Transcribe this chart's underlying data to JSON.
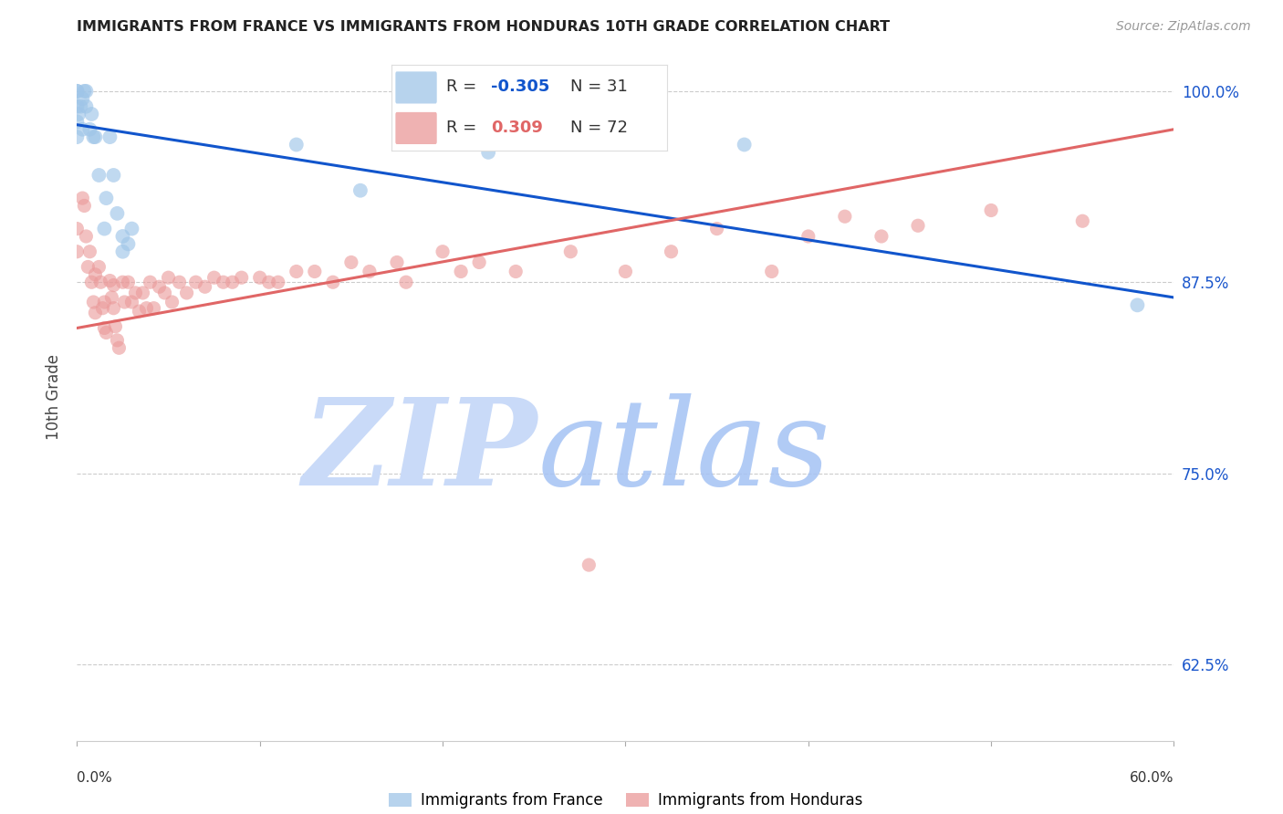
{
  "title": "IMMIGRANTS FROM FRANCE VS IMMIGRANTS FROM HONDURAS 10TH GRADE CORRELATION CHART",
  "source": "Source: ZipAtlas.com",
  "ylabel": "10th Grade",
  "france_R": -0.305,
  "france_N": 31,
  "honduras_R": 0.309,
  "honduras_N": 72,
  "france_color": "#9fc5e8",
  "honduras_color": "#ea9999",
  "france_line_color": "#1155cc",
  "honduras_line_color": "#e06666",
  "watermark_zip_color": "#cfe2f3",
  "watermark_atlas_color": "#a4c2f4",
  "xlim": [
    0.0,
    0.6
  ],
  "ylim": [
    0.575,
    1.025
  ],
  "yticks": [
    0.625,
    0.75,
    0.875,
    1.0
  ],
  "ytick_labels": [
    "62.5%",
    "75.0%",
    "87.5%",
    "100.0%"
  ],
  "france_x": [
    0.001,
    0.002,
    0.003,
    0.003,
    0.004,
    0.005,
    0.005,
    0.007,
    0.008,
    0.009,
    0.01,
    0.012,
    0.015,
    0.016,
    0.018,
    0.02,
    0.022,
    0.025,
    0.025,
    0.028,
    0.03,
    0.0,
    0.0,
    0.0,
    0.0,
    0.0,
    0.12,
    0.155,
    0.225,
    0.58,
    0.365
  ],
  "france_y": [
    0.985,
    0.99,
    0.975,
    0.995,
    1.0,
    1.0,
    0.99,
    0.975,
    0.985,
    0.97,
    0.97,
    0.945,
    0.91,
    0.93,
    0.97,
    0.945,
    0.92,
    0.905,
    0.895,
    0.9,
    0.91,
    1.0,
    1.0,
    0.99,
    0.98,
    0.97,
    0.965,
    0.935,
    0.96,
    0.86,
    0.965
  ],
  "honduras_x": [
    0.003,
    0.004,
    0.005,
    0.006,
    0.007,
    0.008,
    0.009,
    0.01,
    0.01,
    0.012,
    0.013,
    0.014,
    0.015,
    0.015,
    0.016,
    0.018,
    0.019,
    0.02,
    0.02,
    0.021,
    0.022,
    0.023,
    0.025,
    0.026,
    0.028,
    0.03,
    0.032,
    0.034,
    0.036,
    0.038,
    0.04,
    0.042,
    0.045,
    0.048,
    0.05,
    0.052,
    0.056,
    0.06,
    0.065,
    0.07,
    0.075,
    0.08,
    0.085,
    0.09,
    0.1,
    0.105,
    0.11,
    0.12,
    0.13,
    0.14,
    0.15,
    0.16,
    0.175,
    0.18,
    0.2,
    0.21,
    0.22,
    0.24,
    0.27,
    0.3,
    0.325,
    0.35,
    0.38,
    0.4,
    0.42,
    0.44,
    0.46,
    0.5,
    0.55,
    0.0,
    0.0,
    0.28
  ],
  "honduras_y": [
    0.93,
    0.925,
    0.905,
    0.885,
    0.895,
    0.875,
    0.862,
    0.88,
    0.855,
    0.885,
    0.875,
    0.858,
    0.862,
    0.845,
    0.842,
    0.876,
    0.865,
    0.873,
    0.858,
    0.846,
    0.837,
    0.832,
    0.875,
    0.862,
    0.875,
    0.862,
    0.868,
    0.856,
    0.868,
    0.858,
    0.875,
    0.858,
    0.872,
    0.868,
    0.878,
    0.862,
    0.875,
    0.868,
    0.875,
    0.872,
    0.878,
    0.875,
    0.875,
    0.878,
    0.878,
    0.875,
    0.875,
    0.882,
    0.882,
    0.875,
    0.888,
    0.882,
    0.888,
    0.875,
    0.895,
    0.882,
    0.888,
    0.882,
    0.895,
    0.882,
    0.895,
    0.91,
    0.882,
    0.905,
    0.918,
    0.905,
    0.912,
    0.922,
    0.915,
    0.91,
    0.895,
    0.69
  ],
  "france_line_x0": 0.0,
  "france_line_y0": 0.978,
  "france_line_x1": 0.6,
  "france_line_y1": 0.865,
  "honduras_line_x0": 0.0,
  "honduras_line_y0": 0.845,
  "honduras_line_x1": 0.6,
  "honduras_line_y1": 0.975
}
